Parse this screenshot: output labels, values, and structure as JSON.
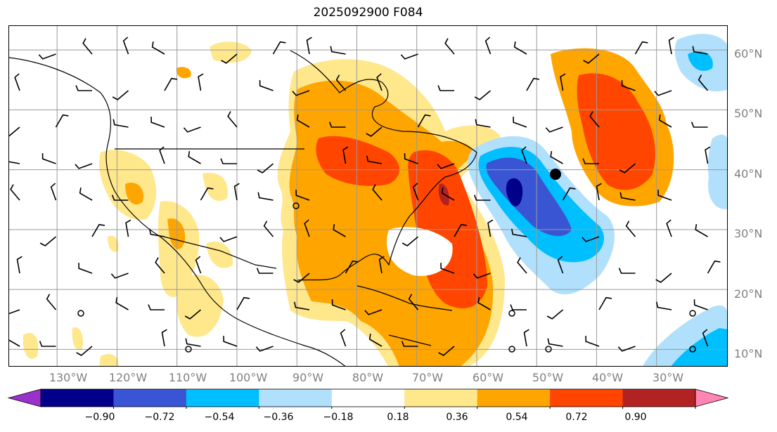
{
  "title": "2025092900 F084",
  "lat_labels": [
    "60°N",
    "50°N",
    "40°N",
    "30°N",
    "20°N",
    "10°N"
  ],
  "lon_labels": [
    "130°W",
    "120°W",
    "110°W",
    "100°W",
    "90°W",
    "80°W",
    "70°W",
    "60°W",
    "50°W",
    "40°W",
    "30°W"
  ],
  "colorbar": {
    "ticks": [
      "−0.90",
      "−0.72",
      "−0.54",
      "−0.36",
      "−0.18",
      "0.18",
      "0.36",
      "0.54",
      "0.72",
      "0.90"
    ],
    "colors": [
      "#9932cc",
      "#00008b",
      "#3a55d4",
      "#00bfff",
      "#b0e0fc",
      "#ffffff",
      "#ffe78c",
      "#ffa500",
      "#ff4500",
      "#b22222",
      "#ff85b3"
    ]
  },
  "map": {
    "extent": {
      "lon_min": -138,
      "lon_max": -18,
      "lat_min": 7,
      "lat_max": 64
    },
    "gridlines_lon": [
      -130,
      -120,
      -110,
      -100,
      -90,
      -80,
      -70,
      -60,
      -50,
      -40,
      -30
    ],
    "gridlines_lat": [
      10,
      20,
      30,
      40,
      50,
      60
    ],
    "grid_color": "#9a9a9a",
    "marker_color": "#000000"
  }
}
